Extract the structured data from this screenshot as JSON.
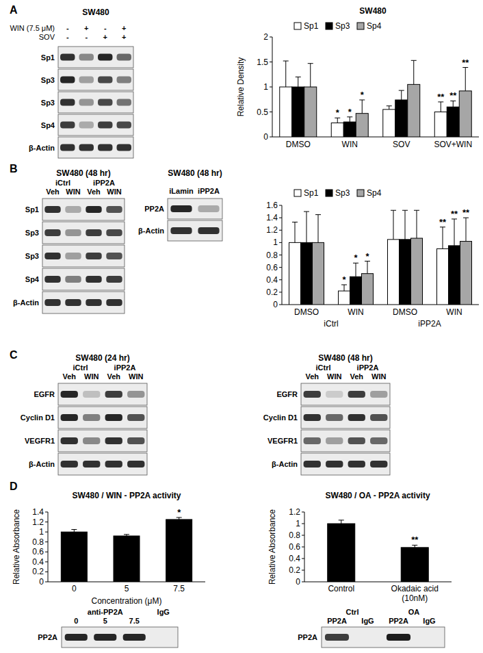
{
  "panel_labels": [
    "A",
    "B",
    "C",
    "D"
  ],
  "chart_data": [
    {
      "type": "bar",
      "title": "SW480",
      "y_label": "Relative Density",
      "categories": [
        "DMSO",
        "WIN",
        "SOV",
        "SOV+WIN"
      ],
      "ylim": [
        0,
        2
      ],
      "yticks": [
        0,
        0.5,
        1,
        1.5,
        2
      ],
      "legend": "top",
      "series": [
        {
          "name": "Sp1",
          "color": "#ffffff",
          "values": [
            1,
            0.28,
            0.55,
            0.5
          ],
          "errors": [
            0.52,
            0.1,
            0.07,
            0.2
          ],
          "significance": [
            null,
            "*",
            null,
            "**"
          ]
        },
        {
          "name": "Sp3",
          "color": "#000000",
          "values": [
            1,
            0.3,
            0.74,
            0.6
          ],
          "errors": [
            0.2,
            0.1,
            0.19,
            0.12
          ],
          "significance": [
            null,
            "*",
            null,
            "**"
          ]
        },
        {
          "name": "Sp4",
          "color": "#a6a6a6",
          "values": [
            1,
            0.47,
            1.05,
            0.92
          ],
          "errors": [
            0.47,
            0.27,
            0.48,
            0.47
          ],
          "significance": [
            null,
            "*",
            null,
            "**"
          ]
        }
      ]
    },
    {
      "type": "bar",
      "categories": [
        "DMSO",
        "WIN",
        "DMSO",
        "WIN"
      ],
      "x_groups": [
        "iCtrl",
        "iPP2A"
      ],
      "ylim": [
        0,
        1.6
      ],
      "yticks": [
        0,
        0.2,
        0.4,
        0.6,
        0.8,
        1,
        1.2,
        1.4,
        1.6
      ],
      "legend": "top",
      "series": [
        {
          "name": "Sp1",
          "color": "#ffffff",
          "values": [
            1,
            0.22,
            1.05,
            0.9
          ],
          "errors": [
            0.33,
            0.1,
            0.47,
            0.35
          ],
          "significance": [
            null,
            "*",
            null,
            "**"
          ]
        },
        {
          "name": "Sp3",
          "color": "#000000",
          "values": [
            1,
            0.45,
            1.05,
            0.95
          ],
          "errors": [
            0.5,
            0.22,
            0.47,
            0.43
          ],
          "significance": [
            null,
            "*",
            null,
            "**"
          ]
        },
        {
          "name": "Sp4",
          "color": "#a6a6a6",
          "values": [
            1,
            0.5,
            1.07,
            1.02
          ],
          "errors": [
            0.45,
            0.2,
            0.45,
            0.38
          ],
          "significance": [
            null,
            "*",
            null,
            "**"
          ]
        }
      ]
    },
    {
      "type": "bar",
      "title": "SW480 / WIN - PP2A activity",
      "y_label": "Relative Absorbance",
      "x_label": "Concentration (μM)",
      "categories": [
        "0",
        "5",
        "7.5"
      ],
      "color": "#000000",
      "values": [
        1,
        0.92,
        1.25
      ],
      "errors": [
        0.05,
        0.03,
        0.04
      ],
      "significance": [
        null,
        null,
        "*"
      ],
      "ylim": [
        0,
        1.4
      ],
      "yticks": [
        0,
        0.2,
        0.4,
        0.6,
        0.8,
        1,
        1.2,
        1.4
      ]
    },
    {
      "type": "bar",
      "title": "SW480 / OA - PP2A activity",
      "y_label": "Relative Absorbance",
      "categories": [
        "Control",
        "Okadaic acid\n(10nM)"
      ],
      "color": "#000000",
      "values": [
        1,
        0.59
      ],
      "errors": [
        0.06,
        0.04
      ],
      "significance": [
        null,
        "**"
      ],
      "ylim": [
        0,
        1.2
      ],
      "yticks": [
        0,
        0.2,
        0.4,
        0.6,
        0.8,
        1,
        1.2
      ]
    }
  ],
  "blots": [
    {
      "title": "SW480",
      "lanes": 4,
      "header_rows": [
        {
          "label": "WIN (7.5 μM)",
          "cells": [
            {
              "text": "-"
            },
            {
              "text": "+"
            },
            {
              "text": "-"
            },
            {
              "text": "+"
            }
          ]
        },
        {
          "label": "SOV",
          "cells": [
            {
              "text": "-"
            },
            {
              "text": "-"
            },
            {
              "text": "+"
            },
            {
              "text": "+"
            }
          ]
        }
      ],
      "rows": [
        {
          "label": "Sp1",
          "bands": [
            0.85,
            0.45,
            0.9,
            0.6
          ]
        },
        {
          "label": "Sp3",
          "bands": [
            0.9,
            0.35,
            0.75,
            0.5
          ]
        },
        {
          "label": "Sp3",
          "bands": [
            0.85,
            0.4,
            0.75,
            0.55
          ]
        },
        {
          "label": "Sp4",
          "bands": [
            0.8,
            0.3,
            0.8,
            0.75
          ]
        },
        {
          "label": "β-Actin",
          "bands": [
            0.85,
            0.85,
            0.85,
            0.85
          ]
        }
      ]
    },
    {
      "title": "SW480 (48 hr)",
      "lanes": 4,
      "header_rows": [
        {
          "cells": [
            {
              "text": "iCtrl",
              "span": 2
            },
            {
              "text": "iPP2A",
              "span": 2
            }
          ]
        },
        {
          "cells": [
            {
              "text": "Veh"
            },
            {
              "text": "WIN"
            },
            {
              "text": "Veh"
            },
            {
              "text": "WIN"
            }
          ]
        }
      ],
      "rows": [
        {
          "label": "Sp1",
          "bands": [
            0.85,
            0.3,
            0.9,
            0.7
          ]
        },
        {
          "label": "Sp3",
          "bands": [
            0.8,
            0.4,
            0.8,
            0.75
          ]
        },
        {
          "label": "Sp3",
          "bands": [
            0.85,
            0.35,
            0.8,
            0.7
          ]
        },
        {
          "label": "Sp4",
          "bands": [
            0.85,
            0.5,
            0.85,
            0.8
          ]
        },
        {
          "label": "β-Actin",
          "bands": [
            0.85,
            0.85,
            0.85,
            0.85
          ]
        }
      ]
    },
    {
      "title": "SW480 (48 hr)",
      "lanes": 2,
      "header_rows": [
        {
          "cells": [
            {
              "text": "iLamin"
            },
            {
              "text": "iPP2A"
            }
          ]
        }
      ],
      "rows": [
        {
          "label": "PP2A",
          "bands": [
            0.9,
            0.3
          ]
        },
        {
          "label": "β-Actin",
          "bands": [
            0.85,
            0.85
          ]
        }
      ]
    },
    {
      "title": "SW480 (24 hr)",
      "lanes": 4,
      "header_rows": [
        {
          "cells": [
            {
              "text": "iCtrl",
              "span": 2
            },
            {
              "text": "iPP2A",
              "span": 2
            }
          ]
        },
        {
          "cells": [
            {
              "text": "Veh"
            },
            {
              "text": "WIN"
            },
            {
              "text": "Veh"
            },
            {
              "text": "WIN"
            }
          ]
        }
      ],
      "rows": [
        {
          "label": "EGFR",
          "bands": [
            0.9,
            0.2,
            0.8,
            0.4
          ]
        },
        {
          "label": "Cyclin D1",
          "bands": [
            0.9,
            0.5,
            0.9,
            0.7
          ]
        },
        {
          "label": "VEGFR1",
          "bands": [
            0.85,
            0.45,
            0.85,
            0.7
          ]
        },
        {
          "label": "β-Actin",
          "bands": [
            0.85,
            0.85,
            0.85,
            0.85
          ]
        }
      ]
    },
    {
      "title": "SW480 (48 hr)",
      "lanes": 4,
      "header_rows": [
        {
          "cells": [
            {
              "text": "iCtrl",
              "span": 2
            },
            {
              "text": "iPP2A",
              "span": 2
            }
          ]
        },
        {
          "cells": [
            {
              "text": "Veh"
            },
            {
              "text": "WIN"
            },
            {
              "text": "Veh"
            },
            {
              "text": "WIN"
            }
          ]
        }
      ],
      "rows": [
        {
          "label": "EGFR",
          "bands": [
            0.8,
            0.15,
            0.8,
            0.35
          ]
        },
        {
          "label": "Cyclin D1",
          "bands": [
            0.85,
            0.6,
            0.85,
            0.7
          ]
        },
        {
          "label": "VEGFR1",
          "bands": [
            0.6,
            0.35,
            0.7,
            0.6
          ]
        },
        {
          "label": "β-Actin",
          "bands": [
            0.85,
            0.85,
            0.85,
            0.85
          ]
        }
      ]
    },
    {
      "lanes": 4,
      "header_rows": [
        {
          "cells": [
            {
              "text": "anti-PP2A",
              "span": 3
            },
            {
              "text": "IgG"
            }
          ]
        },
        {
          "cells": [
            {
              "text": "0"
            },
            {
              "text": "5"
            },
            {
              "text": "7.5"
            }
          ]
        }
      ],
      "rows": [
        {
          "label": "PP2A",
          "bands": [
            0.9,
            0.9,
            0.9,
            0
          ]
        }
      ]
    },
    {
      "lanes": 4,
      "header_rows": [
        {
          "cells": [
            {
              "text": "Ctrl",
              "span": 2
            },
            {
              "text": "OA",
              "span": 2
            }
          ]
        },
        {
          "cells": [
            {
              "text": "PP2A"
            },
            {
              "text": "IgG"
            },
            {
              "text": "PP2A"
            },
            {
              "text": "IgG"
            }
          ]
        }
      ],
      "rows": [
        {
          "label": "PP2A",
          "bands": [
            0.8,
            0,
            0.95,
            0
          ]
        }
      ]
    }
  ]
}
